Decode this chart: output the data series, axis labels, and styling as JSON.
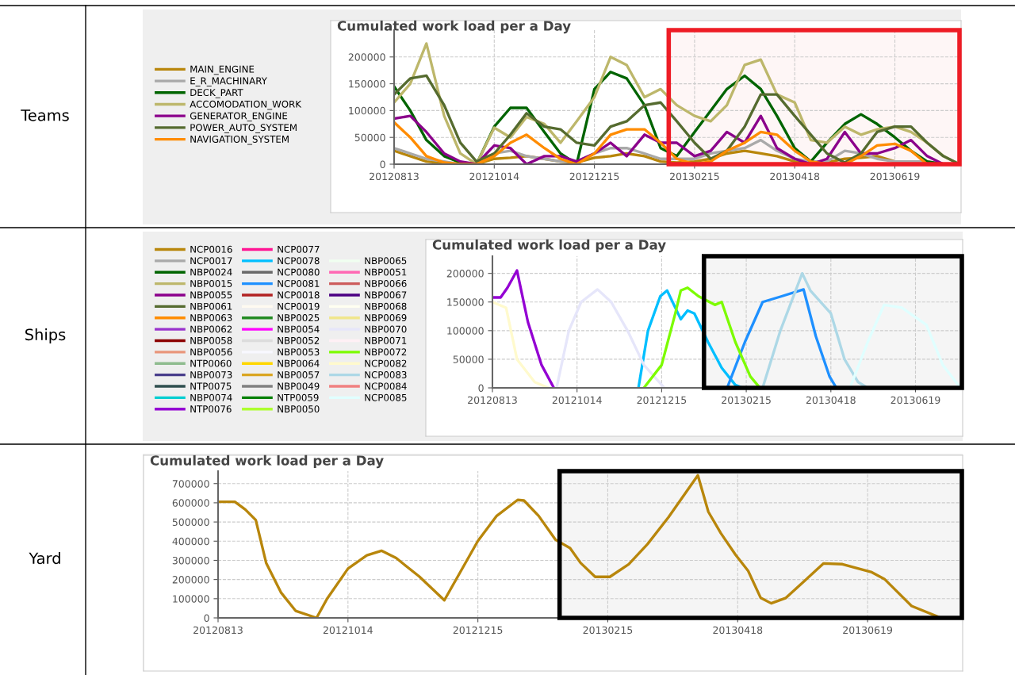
{
  "chart_data": [
    {
      "type": "line",
      "title": "Cumulated work load per a Day",
      "annotations": [
        "Teams"
      ],
      "legend": "left",
      "grid": true,
      "x": [
        "2012-08-13",
        "2012-08-23",
        "2012-09-02",
        "2012-09-13",
        "2012-09-23",
        "2012-10-03",
        "2012-10-14",
        "2012-10-24",
        "2012-11-03",
        "2012-11-14",
        "2012-11-24",
        "2012-12-04",
        "2012-12-15",
        "2012-12-25",
        "2013-01-04",
        "2013-01-15",
        "2013-01-25",
        "2013-02-04",
        "2013-02-15",
        "2013-02-25",
        "2013-03-07",
        "2013-03-18",
        "2013-03-28",
        "2013-04-07",
        "2013-04-18",
        "2013-04-28",
        "2013-05-08",
        "2013-05-19",
        "2013-05-29",
        "2013-06-08",
        "2013-06-19",
        "2013-06-29",
        "2013-07-09",
        "2013-07-19",
        "2013-07-29"
      ],
      "xlim": [
        "2012-08-13",
        "2013-07-29"
      ],
      "xticks": [
        {
          "value": "2012-08-13",
          "label": "20120813"
        },
        {
          "value": "2012-10-14",
          "label": "20121014"
        },
        {
          "value": "2012-12-15",
          "label": "20121215"
        },
        {
          "value": "2013-02-15",
          "label": "20130215"
        },
        {
          "value": "2013-04-18",
          "label": "20130418"
        },
        {
          "value": "2013-06-19",
          "label": "20130619"
        }
      ],
      "ylim": [
        0,
        250000
      ],
      "yticks": [
        0,
        50000,
        100000,
        150000,
        200000
      ],
      "bands": [
        {
          "axis": "x",
          "from": "2013-01-30",
          "to": "2013-07-29",
          "color": "#ee1c25"
        }
      ],
      "series": [
        {
          "name": "MAIN_ENGINE",
          "color": "#b8860b",
          "values": [
            25000,
            15000,
            5000,
            2000,
            0,
            0,
            10000,
            12000,
            15000,
            10000,
            5000,
            3000,
            12000,
            15000,
            20000,
            15000,
            5000,
            3000,
            5000,
            10000,
            20000,
            25000,
            20000,
            15000,
            5000,
            0,
            3000,
            10000,
            12000,
            15000,
            5000,
            3000,
            0,
            0,
            0
          ]
        },
        {
          "name": "E_R_MACHINARY",
          "color": "#a9a9a9",
          "values": [
            30000,
            20000,
            10000,
            5000,
            0,
            0,
            20000,
            25000,
            15000,
            10000,
            5000,
            5000,
            20000,
            30000,
            30000,
            20000,
            10000,
            10000,
            10000,
            20000,
            25000,
            30000,
            45000,
            25000,
            10000,
            5000,
            5000,
            25000,
            20000,
            10000,
            5000,
            5000,
            5000,
            0,
            0
          ]
        },
        {
          "name": "DECK_PART",
          "color": "#006400",
          "values": [
            145000,
            100000,
            45000,
            15000,
            3000,
            0,
            70000,
            105000,
            105000,
            60000,
            20000,
            0,
            140000,
            172000,
            160000,
            110000,
            30000,
            15000,
            60000,
            100000,
            140000,
            165000,
            140000,
            90000,
            30000,
            5000,
            40000,
            75000,
            93000,
            75000,
            50000,
            25000,
            5000,
            0,
            0
          ]
        },
        {
          "name": "ACCOMODATION_WORK",
          "color": "#bdb76b",
          "values": [
            115000,
            150000,
            225000,
            90000,
            20000,
            0,
            68000,
            50000,
            88000,
            75000,
            40000,
            80000,
            125000,
            200000,
            185000,
            125000,
            140000,
            110000,
            90000,
            80000,
            110000,
            185000,
            195000,
            130000,
            115000,
            45000,
            40000,
            70000,
            55000,
            65000,
            70000,
            60000,
            40000,
            15000,
            0
          ]
        },
        {
          "name": "GENERATOR_ENGINE",
          "color": "#8b008b",
          "values": [
            85000,
            90000,
            60000,
            20000,
            5000,
            0,
            35000,
            30000,
            0,
            15000,
            15000,
            5000,
            20000,
            40000,
            15000,
            55000,
            40000,
            40000,
            15000,
            25000,
            60000,
            40000,
            90000,
            30000,
            10000,
            0,
            10000,
            60000,
            20000,
            20000,
            30000,
            45000,
            15000,
            0,
            0
          ]
        },
        {
          "name": "POWER_AUTO_SYSTEM",
          "color": "#556b2f",
          "values": [
            130000,
            160000,
            165000,
            110000,
            40000,
            5000,
            20000,
            55000,
            95000,
            70000,
            65000,
            40000,
            35000,
            70000,
            80000,
            110000,
            115000,
            80000,
            40000,
            10000,
            25000,
            70000,
            130000,
            130000,
            90000,
            55000,
            20000,
            3000,
            20000,
            60000,
            70000,
            70000,
            40000,
            15000,
            0
          ]
        },
        {
          "name": "NAVIGATION_SYSTEM",
          "color": "#ff8c00",
          "values": [
            78000,
            50000,
            15000,
            3000,
            0,
            0,
            15000,
            40000,
            55000,
            30000,
            10000,
            0,
            20000,
            55000,
            65000,
            65000,
            40000,
            10000,
            0,
            5000,
            25000,
            40000,
            60000,
            55000,
            25000,
            5000,
            0,
            0,
            15000,
            35000,
            38000,
            25000,
            0,
            0,
            0
          ]
        }
      ]
    },
    {
      "type": "line",
      "title": "Cumulated work load per a Day",
      "annotations": [
        "Ships"
      ],
      "legend": "left",
      "grid": true,
      "xlim": [
        "2012-08-13",
        "2013-07-23"
      ],
      "xticks": [
        {
          "value": "2012-08-13",
          "label": "20120813"
        },
        {
          "value": "2012-10-14",
          "label": "20121014"
        },
        {
          "value": "2012-12-15",
          "label": "20121215"
        },
        {
          "value": "2013-02-15",
          "label": "20130215"
        },
        {
          "value": "2013-04-18",
          "label": "20130418"
        },
        {
          "value": "2013-06-19",
          "label": "20130619"
        }
      ],
      "ylim": [
        0,
        230000
      ],
      "yticks": [
        0,
        50000,
        100000,
        150000,
        200000
      ],
      "bands": [
        {
          "axis": "x",
          "from": "2013-01-15",
          "to": "2013-07-23",
          "color": "#000000"
        }
      ],
      "series": [
        {
          "name": "NCP0016",
          "color": "#b8860b"
        },
        {
          "name": "NCP0017",
          "color": "#a9a9a9"
        },
        {
          "name": "NBP0024",
          "color": "#006400"
        },
        {
          "name": "NBP0015",
          "color": "#bdb76b"
        },
        {
          "name": "NBP0055",
          "color": "#8b008b"
        },
        {
          "name": "NBP0061",
          "color": "#556b2f"
        },
        {
          "name": "NBP0063",
          "color": "#ff8c00"
        },
        {
          "name": "NBP0062",
          "color": "#9932cc"
        },
        {
          "name": "NBP0058",
          "color": "#8b0000"
        },
        {
          "name": "NBP0056",
          "color": "#e9967a"
        },
        {
          "name": "NTP0060",
          "color": "#8fbc8f"
        },
        {
          "name": "NBP0073",
          "color": "#483d8b"
        },
        {
          "name": "NTP0075",
          "color": "#2f4f4f"
        },
        {
          "name": "NBP0074",
          "color": "#00ced1"
        },
        {
          "name": "NTP0076",
          "color": "#9400d3",
          "x": [
            "2012-08-13",
            "2012-08-19",
            "2012-08-24",
            "2012-08-31",
            "2012-09-08",
            "2012-09-18",
            "2012-09-27"
          ],
          "values": [
            158000,
            158000,
            175000,
            205000,
            115000,
            40000,
            0
          ]
        },
        {
          "name": "NCP0077",
          "color": "#ff1493"
        },
        {
          "name": "NCP0078",
          "color": "#00bfff",
          "x": [
            "2012-11-28",
            "2012-12-05",
            "2012-12-14",
            "2012-12-19",
            "2012-12-29",
            "2013-01-03",
            "2013-01-08",
            "2013-01-18",
            "2013-01-28",
            "2013-02-07",
            "2013-02-12"
          ],
          "values": [
            0,
            100000,
            160000,
            170000,
            120000,
            135000,
            130000,
            80000,
            35000,
            5000,
            0
          ]
        },
        {
          "name": "NCP0080",
          "color": "#696969"
        },
        {
          "name": "NCP0081",
          "color": "#1e90ff",
          "x": [
            "2013-02-01",
            "2013-02-14",
            "2013-02-27",
            "2013-03-13",
            "2013-03-29",
            "2013-04-07",
            "2013-04-17",
            "2013-04-22"
          ],
          "values": [
            0,
            80000,
            150000,
            160000,
            172000,
            90000,
            20000,
            0
          ]
        },
        {
          "name": "NCP0018",
          "color": "#b22222"
        },
        {
          "name": "NCP0019",
          "color": "#fffaf0"
        },
        {
          "name": "NBP0025",
          "color": "#228b22"
        },
        {
          "name": "NBP0054",
          "color": "#ff00ff"
        },
        {
          "name": "NBP0052",
          "color": "#dcdcdc"
        },
        {
          "name": "NBP0053",
          "color": "#f8f8ff"
        },
        {
          "name": "NBP0064",
          "color": "#ffd700"
        },
        {
          "name": "NBP0057",
          "color": "#daa520"
        },
        {
          "name": "NBP0049",
          "color": "#808080"
        },
        {
          "name": "NTP0059",
          "color": "#008000"
        },
        {
          "name": "NBP0050",
          "color": "#adff2f"
        },
        {
          "name": "NBP0065",
          "color": "#f0fff0"
        },
        {
          "name": "NBP0051",
          "color": "#ff69b4"
        },
        {
          "name": "NBP0066",
          "color": "#cd5c5c"
        },
        {
          "name": "NBP0067",
          "color": "#4b0082"
        },
        {
          "name": "NBP0068",
          "color": "#fffff0"
        },
        {
          "name": "NBP0069",
          "color": "#f0e68c"
        },
        {
          "name": "NBP0070",
          "color": "#e6e6fa",
          "x": [
            "2012-09-29",
            "2012-10-08",
            "2012-10-17",
            "2012-10-29",
            "2012-11-08",
            "2012-11-20",
            "2012-12-02",
            "2012-12-17"
          ],
          "values": [
            0,
            100000,
            150000,
            172000,
            150000,
            100000,
            40000,
            0
          ]
        },
        {
          "name": "NBP0071",
          "color": "#fff0f5"
        },
        {
          "name": "NBP0072",
          "color": "#7cfc00",
          "x": [
            "2012-12-02",
            "2012-12-15",
            "2012-12-25",
            "2012-12-29",
            "2013-01-03",
            "2013-01-11",
            "2013-01-23",
            "2013-01-28",
            "2013-02-07",
            "2013-02-18",
            "2013-02-25"
          ],
          "values": [
            0,
            40000,
            130000,
            170000,
            175000,
            160000,
            145000,
            150000,
            80000,
            20000,
            0
          ]
        },
        {
          "name": "NCP0082",
          "color": "#fffacd",
          "x": [
            "2012-08-13",
            "2012-08-23",
            "2012-08-31",
            "2012-09-13",
            "2012-09-23"
          ],
          "values": [
            150000,
            140000,
            50000,
            10000,
            0
          ]
        },
        {
          "name": "NCP0083",
          "color": "#add8e6",
          "x": [
            "2013-02-27",
            "2013-03-12",
            "2013-03-28",
            "2013-04-03",
            "2013-04-18",
            "2013-04-28",
            "2013-05-08",
            "2013-05-15"
          ],
          "values": [
            0,
            100000,
            200000,
            170000,
            130000,
            50000,
            10000,
            0
          ]
        },
        {
          "name": "NCP0084",
          "color": "#f08080"
        },
        {
          "name": "NCP0085",
          "color": "#e0ffff",
          "x": [
            "2013-05-02",
            "2013-05-15",
            "2013-05-27",
            "2013-06-09",
            "2013-06-27",
            "2013-07-09",
            "2013-07-22"
          ],
          "values": [
            0,
            80000,
            145000,
            140000,
            110000,
            40000,
            0
          ]
        }
      ]
    },
    {
      "type": "line",
      "title": "Cumulated work load per a Day",
      "annotations": [
        "Yard"
      ],
      "grid": true,
      "xlim": [
        "2012-08-13",
        "2013-08-03"
      ],
      "xticks": [
        {
          "value": "2012-08-13",
          "label": "20120813"
        },
        {
          "value": "2012-10-14",
          "label": "20121014"
        },
        {
          "value": "2012-12-15",
          "label": "20121215"
        },
        {
          "value": "2013-02-15",
          "label": "20130215"
        },
        {
          "value": "2013-04-18",
          "label": "20130418"
        },
        {
          "value": "2013-06-19",
          "label": "20130619"
        }
      ],
      "ylim": [
        0,
        765000
      ],
      "yticks": [
        0,
        100000,
        200000,
        300000,
        400000,
        500000,
        600000,
        700000
      ],
      "bands": [
        {
          "axis": "x",
          "from": "2013-01-23",
          "to": "2013-08-03",
          "color": "#000000"
        }
      ],
      "series": [
        {
          "color": "#b8860b",
          "x": [
            "2012-08-13",
            "2012-08-21",
            "2012-08-26",
            "2012-08-31",
            "2012-09-05",
            "2012-09-12",
            "2012-09-19",
            "2012-09-29",
            "2012-10-04",
            "2012-10-14",
            "2012-10-23",
            "2012-10-30",
            "2012-11-06",
            "2012-11-17",
            "2012-11-29",
            "2012-12-15",
            "2012-12-24",
            "2013-01-03",
            "2013-01-06",
            "2013-01-13",
            "2013-01-21",
            "2013-01-28",
            "2013-02-02",
            "2013-02-09",
            "2013-02-16",
            "2013-02-25",
            "2013-03-06",
            "2013-03-16",
            "2013-03-30",
            "2013-04-04",
            "2013-04-10",
            "2013-04-17",
            "2013-04-23",
            "2013-04-29",
            "2013-05-04",
            "2013-05-11",
            "2013-05-29",
            "2013-06-07",
            "2013-06-21",
            "2013-06-27",
            "2013-07-10",
            "2013-07-24",
            "2013-08-03"
          ],
          "values": [
            605000,
            605000,
            565000,
            510000,
            285000,
            133000,
            37000,
            0,
            99000,
            257000,
            326000,
            350000,
            312000,
            216000,
            92000,
            401000,
            532000,
            615000,
            612000,
            532000,
            408000,
            364000,
            287000,
            214000,
            214000,
            280000,
            385000,
            525000,
            743000,
            553000,
            441000,
            329000,
            245000,
            104000,
            76000,
            104000,
            284000,
            280000,
            238000,
            203000,
            62000,
            0,
            0
          ]
        }
      ]
    }
  ]
}
